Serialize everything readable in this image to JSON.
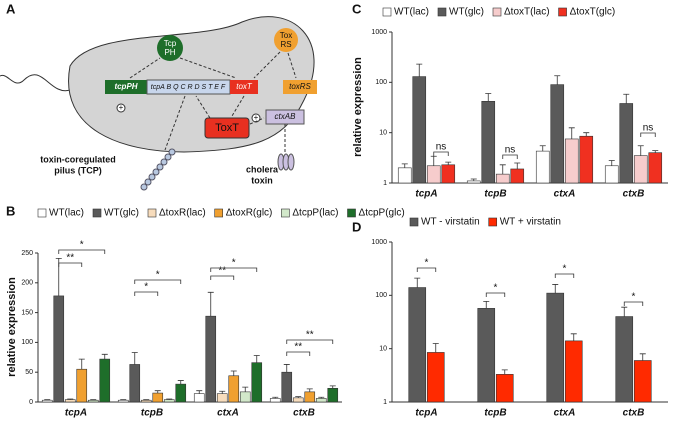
{
  "diagram": {
    "panel_label": "A",
    "labels": [
      "Tcp",
      "PH",
      "Tox",
      "RS",
      "tcpPH",
      "tcpA B Q C R D S T E F",
      "toxT",
      "toxRS",
      "ToxT",
      "ctxAB",
      "+",
      "+",
      "toxin-coregulated",
      "pilus (TCP)",
      "cholera",
      "toxin"
    ]
  },
  "chart_data": [
    {
      "type": "bar",
      "panel_label": "B",
      "ylabel": "relative expression",
      "categories": [
        "tcpA",
        "tcpB",
        "ctxA",
        "ctxB"
      ],
      "series": [
        {
          "name": "WT(lac)",
          "color": "#ffffff",
          "values": [
            3,
            3,
            14,
            6
          ],
          "errors": [
            1,
            1,
            5,
            2
          ]
        },
        {
          "name": "WT(glc)",
          "color": "#5a5a5a",
          "values": [
            178,
            63,
            144,
            50
          ],
          "errors": [
            63,
            20,
            40,
            13
          ]
        },
        {
          "name": "ΔtoxR(lac)",
          "color": "#f7dcbc",
          "values": [
            4,
            3,
            14,
            7
          ],
          "errors": [
            1,
            1,
            4,
            2
          ]
        },
        {
          "name": "ΔtoxR(glc)",
          "color": "#f0a030",
          "values": [
            55,
            15,
            44,
            17
          ],
          "errors": [
            17,
            4,
            8,
            5
          ]
        },
        {
          "name": "ΔtcpP(lac)",
          "color": "#d2e8ca",
          "values": [
            3,
            4,
            17,
            6
          ],
          "errors": [
            1,
            1,
            8,
            2
          ]
        },
        {
          "name": "ΔtcpP(glc)",
          "color": "#1e6e2a",
          "values": [
            72,
            30,
            66,
            23
          ],
          "errors": [
            8,
            6,
            12,
            4
          ]
        }
      ],
      "ylim": [
        0,
        250
      ],
      "yticks": [
        0,
        50,
        100,
        150,
        200,
        250
      ],
      "annotations": [
        "**",
        "*",
        "*",
        "*",
        "**",
        "*",
        "**",
        "**"
      ]
    },
    {
      "type": "bar",
      "panel_label": "C",
      "ylabel": "relative expression",
      "log_scale": true,
      "categories": [
        "tcpA",
        "tcpB",
        "ctxA",
        "ctxB"
      ],
      "series": [
        {
          "name": "WT(lac)",
          "color": "#ffffff",
          "values": [
            2,
            1.1,
            4.3,
            2.2
          ],
          "errors": [
            0.4,
            0.1,
            1.2,
            0.6
          ]
        },
        {
          "name": "WT(glc)",
          "color": "#5a5a5a",
          "values": [
            130,
            42,
            90,
            38
          ],
          "errors": [
            100,
            18,
            45,
            20
          ]
        },
        {
          "name": "ΔtoxT(lac)",
          "color": "#f6cccc",
          "values": [
            2.2,
            1.5,
            7.5,
            3.5
          ],
          "errors": [
            1.2,
            0.8,
            5,
            2
          ]
        },
        {
          "name": "ΔtoxT(glc)",
          "color": "#f03020",
          "values": [
            2.3,
            1.9,
            8.5,
            4
          ],
          "errors": [
            0.3,
            0.6,
            1.5,
            0.4
          ]
        }
      ],
      "ylim": [
        1,
        1000
      ],
      "yticks": [
        1,
        10,
        100,
        1000
      ],
      "annotations": [
        "ns",
        "ns",
        "ns"
      ]
    },
    {
      "type": "bar",
      "panel_label": "D",
      "log_scale": true,
      "categories": [
        "tcpA",
        "tcpB",
        "ctxA",
        "ctxB"
      ],
      "series": [
        {
          "name": "WT - virstatin",
          "color": "#5a5a5a",
          "values": [
            140,
            57,
            110,
            40
          ],
          "errors": [
            70,
            20,
            50,
            20
          ]
        },
        {
          "name": "WT + virstatin",
          "color": "#ff2a00",
          "values": [
            8.5,
            3.3,
            14,
            6
          ],
          "errors": [
            4,
            0.7,
            5,
            2
          ]
        }
      ],
      "ylim": [
        1,
        1000
      ],
      "yticks": [
        1,
        10,
        100,
        1000
      ],
      "annotations": [
        "*",
        "*",
        "*",
        "*"
      ]
    }
  ]
}
